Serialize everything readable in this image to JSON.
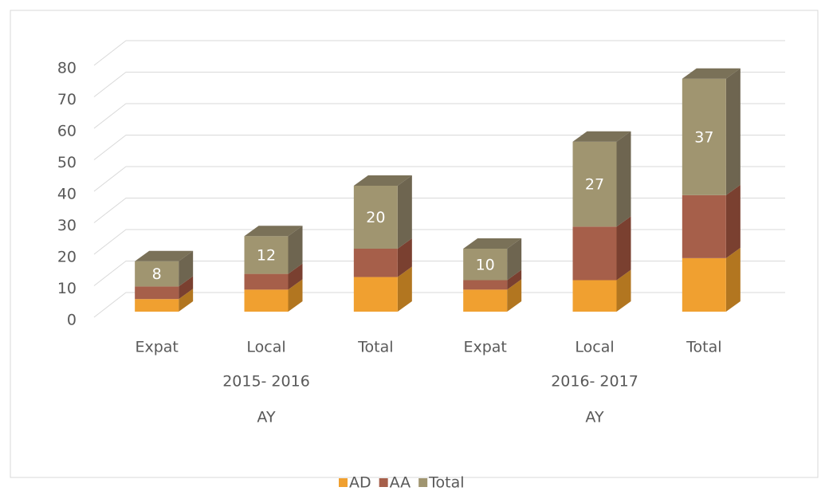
{
  "chart_data": {
    "type": "bar3d_stacked",
    "categories": [
      "Expat",
      "Local",
      "Total",
      "Expat",
      "Local",
      "Total"
    ],
    "groups": [
      "2015- 2016",
      "2016- 2017"
    ],
    "group_labels": [
      "AY",
      "AY"
    ],
    "series": [
      {
        "name": "AD",
        "color": "#f0a030",
        "side": "#b27620",
        "values": [
          4,
          7,
          11,
          7,
          10,
          17
        ]
      },
      {
        "name": "AA",
        "color": "#a65f4a",
        "side": "#7a4030",
        "values": [
          4,
          5,
          9,
          3,
          17,
          20
        ]
      },
      {
        "name": "Total",
        "color": "#a09570",
        "side": "#6e6550",
        "top": "#7a7158",
        "values": [
          8,
          12,
          20,
          10,
          27,
          37
        ],
        "labels": true
      }
    ],
    "ylim": [
      0,
      80
    ],
    "yticks": [
      0,
      10,
      20,
      30,
      40,
      50,
      60,
      70,
      80
    ],
    "grid": true
  }
}
